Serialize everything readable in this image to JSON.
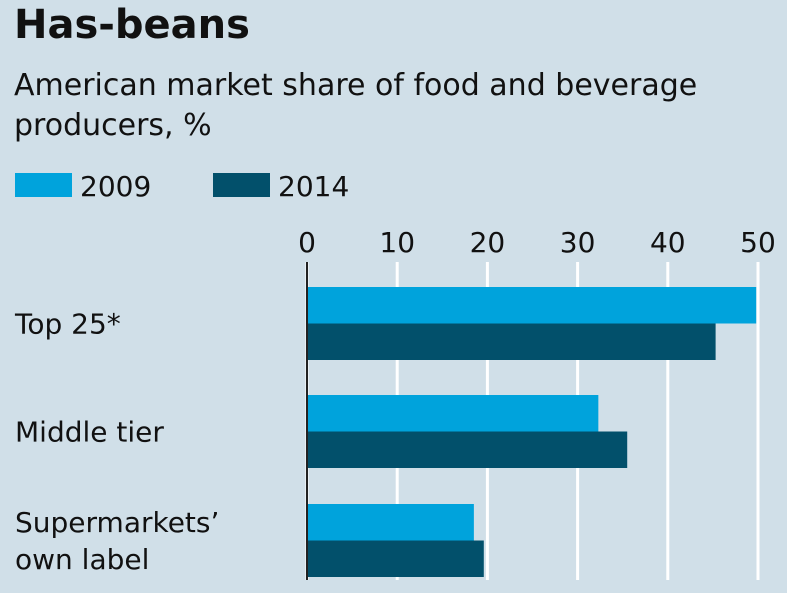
{
  "chart_data": {
    "type": "bar",
    "orientation": "horizontal",
    "title": "Has-beans",
    "subtitle": "American market share of food and beverage producers, %",
    "categories": [
      "Top 25*",
      "Middle tier",
      "Supermarkets’ own label"
    ],
    "series": [
      {
        "name": "2009",
        "color": "#00a3dc",
        "values": [
          49.8,
          32.3,
          18.5
        ]
      },
      {
        "name": "2014",
        "color": "#02506b",
        "values": [
          45.3,
          35.5,
          19.6
        ]
      }
    ],
    "xlim": [
      0,
      50
    ],
    "xticks": [
      0,
      10,
      20,
      30,
      40,
      50
    ],
    "grid": true,
    "legend": "top-left"
  }
}
